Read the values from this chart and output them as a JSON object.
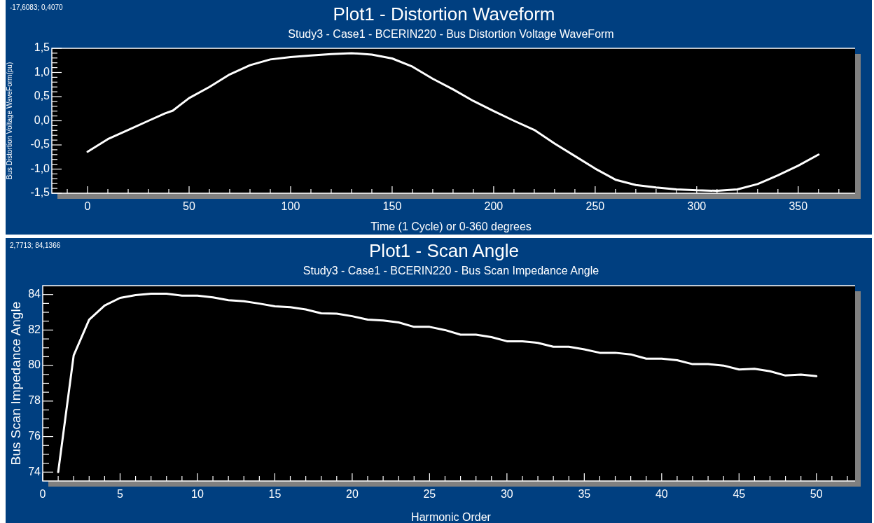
{
  "chart_data": [
    {
      "type": "line",
      "title": "Plot1 - Distortion Waveform",
      "subtitle": "Study3 - Case1 - BCERIN220 - Bus Distortion Voltage WaveForm",
      "xlabel": "Time (1 Cycle) or 0-360 degrees",
      "ylabel": "Bus Distortion Voltage WaveForm(pu)",
      "annotations": [
        "-17,6083; 0,4070"
      ],
      "xlim": [
        -17.6,
        378
      ],
      "ylim": [
        -1.5,
        1.5
      ],
      "xticks": [
        {
          "value": -10,
          "label": null
        },
        0,
        {
          "value": 10,
          "label": null
        },
        {
          "value": 20,
          "label": null
        },
        {
          "value": 30,
          "label": null
        },
        {
          "value": 40,
          "label": null
        },
        50,
        {
          "value": 60,
          "label": null
        },
        {
          "value": 70,
          "label": null
        },
        {
          "value": 80,
          "label": null
        },
        {
          "value": 90,
          "label": null
        },
        100,
        {
          "value": 110,
          "label": null
        },
        {
          "value": 120,
          "label": null
        },
        {
          "value": 130,
          "label": null
        },
        {
          "value": 140,
          "label": null
        },
        150,
        {
          "value": 160,
          "label": null
        },
        {
          "value": 170,
          "label": null
        },
        {
          "value": 180,
          "label": null
        },
        {
          "value": 190,
          "label": null
        },
        200,
        {
          "value": 210,
          "label": null
        },
        {
          "value": 220,
          "label": null
        },
        {
          "value": 230,
          "label": null
        },
        {
          "value": 240,
          "label": null
        },
        250,
        {
          "value": 260,
          "label": null
        },
        {
          "value": 270,
          "label": null
        },
        {
          "value": 280,
          "label": null
        },
        {
          "value": 290,
          "label": null
        },
        300,
        {
          "value": 310,
          "label": null
        },
        {
          "value": 320,
          "label": null
        },
        {
          "value": 330,
          "label": null
        },
        {
          "value": 340,
          "label": null
        },
        350,
        {
          "value": 360,
          "label": null
        },
        {
          "value": 370,
          "label": null
        }
      ],
      "yticks": [
        {
          "value": -1.5,
          "label": "-1,5"
        },
        {
          "value": -1.4,
          "label": null
        },
        {
          "value": -1.3,
          "label": null
        },
        {
          "value": -1.2,
          "label": null
        },
        {
          "value": -1.1,
          "label": null
        },
        {
          "value": -1.0,
          "label": "-1,0"
        },
        {
          "value": -0.9,
          "label": null
        },
        {
          "value": -0.8,
          "label": null
        },
        {
          "value": -0.7,
          "label": null
        },
        {
          "value": -0.6,
          "label": null
        },
        {
          "value": -0.5,
          "label": "-0,5"
        },
        {
          "value": -0.4,
          "label": null
        },
        {
          "value": -0.3,
          "label": null
        },
        {
          "value": -0.2,
          "label": null
        },
        {
          "value": -0.1,
          "label": null
        },
        {
          "value": 0,
          "label": "0,0"
        },
        {
          "value": 0.1,
          "label": null
        },
        {
          "value": 0.2,
          "label": null
        },
        {
          "value": 0.3,
          "label": null
        },
        {
          "value": 0.4,
          "label": null
        },
        {
          "value": 0.5,
          "label": "0,5"
        },
        {
          "value": 0.6,
          "label": null
        },
        {
          "value": 0.7,
          "label": null
        },
        {
          "value": 0.8,
          "label": null
        },
        {
          "value": 0.9,
          "label": null
        },
        {
          "value": 1.0,
          "label": "1,0"
        },
        {
          "value": 1.1,
          "label": null
        },
        {
          "value": 1.2,
          "label": null
        },
        {
          "value": 1.3,
          "label": null
        },
        {
          "value": 1.4,
          "label": null
        },
        {
          "value": 1.5,
          "label": "1,5"
        }
      ],
      "x": [
        0,
        10,
        20,
        30,
        38,
        42,
        50,
        60,
        70,
        80,
        90,
        100,
        110,
        120,
        130,
        140,
        150,
        160,
        170,
        180,
        190,
        200,
        210,
        220,
        230,
        240,
        250,
        260,
        270,
        280,
        290,
        300,
        310,
        320,
        330,
        340,
        350,
        360
      ],
      "series": [
        {
          "color": "#ffffff",
          "values": [
            -0.64,
            -0.38,
            -0.19,
            0.0,
            0.15,
            0.21,
            0.47,
            0.7,
            0.96,
            1.15,
            1.27,
            1.32,
            1.35,
            1.38,
            1.4,
            1.37,
            1.29,
            1.12,
            0.87,
            0.65,
            0.41,
            0.2,
            0.0,
            -0.19,
            -0.47,
            -0.73,
            -0.99,
            -1.22,
            -1.33,
            -1.38,
            -1.42,
            -1.44,
            -1.45,
            -1.42,
            -1.31,
            -1.13,
            -0.93,
            -0.7
          ]
        }
      ]
    },
    {
      "type": "line",
      "title": "Plot1 - Scan Angle",
      "subtitle": "Study3 - Case1 - BCERIN220 - Bus Scan Impedance Angle",
      "xlabel": "Harmonic Order",
      "ylabel": "Bus Scan Impedance Angle",
      "annotations": [
        "2,7713; 84,1366"
      ],
      "xlim": [
        0,
        52.5
      ],
      "ylim": [
        73.5,
        84.5
      ],
      "xticks": [
        0,
        {
          "value": 1,
          "label": null
        },
        {
          "value": 2,
          "label": null
        },
        {
          "value": 3,
          "label": null
        },
        {
          "value": 4,
          "label": null
        },
        5,
        {
          "value": 6,
          "label": null
        },
        {
          "value": 7,
          "label": null
        },
        {
          "value": 8,
          "label": null
        },
        {
          "value": 9,
          "label": null
        },
        10,
        {
          "value": 11,
          "label": null
        },
        {
          "value": 12,
          "label": null
        },
        {
          "value": 13,
          "label": null
        },
        {
          "value": 14,
          "label": null
        },
        15,
        {
          "value": 16,
          "label": null
        },
        {
          "value": 17,
          "label": null
        },
        {
          "value": 18,
          "label": null
        },
        {
          "value": 19,
          "label": null
        },
        20,
        {
          "value": 21,
          "label": null
        },
        {
          "value": 22,
          "label": null
        },
        {
          "value": 23,
          "label": null
        },
        {
          "value": 24,
          "label": null
        },
        25,
        {
          "value": 26,
          "label": null
        },
        {
          "value": 27,
          "label": null
        },
        {
          "value": 28,
          "label": null
        },
        {
          "value": 29,
          "label": null
        },
        30,
        {
          "value": 31,
          "label": null
        },
        {
          "value": 32,
          "label": null
        },
        {
          "value": 33,
          "label": null
        },
        {
          "value": 34,
          "label": null
        },
        35,
        {
          "value": 36,
          "label": null
        },
        {
          "value": 37,
          "label": null
        },
        {
          "value": 38,
          "label": null
        },
        {
          "value": 39,
          "label": null
        },
        40,
        {
          "value": 41,
          "label": null
        },
        {
          "value": 42,
          "label": null
        },
        {
          "value": 43,
          "label": null
        },
        {
          "value": 44,
          "label": null
        },
        45,
        {
          "value": 46,
          "label": null
        },
        {
          "value": 47,
          "label": null
        },
        {
          "value": 48,
          "label": null
        },
        {
          "value": 49,
          "label": null
        },
        50,
        {
          "value": 51,
          "label": null
        },
        {
          "value": 52,
          "label": null
        }
      ],
      "yticks": [
        74,
        {
          "value": 74.5,
          "label": null
        },
        {
          "value": 75,
          "label": null
        },
        {
          "value": 75.5,
          "label": null
        },
        76,
        {
          "value": 76.5,
          "label": null
        },
        {
          "value": 77,
          "label": null
        },
        {
          "value": 77.5,
          "label": null
        },
        78,
        {
          "value": 78.5,
          "label": null
        },
        {
          "value": 79,
          "label": null
        },
        {
          "value": 79.5,
          "label": null
        },
        80,
        {
          "value": 80.5,
          "label": null
        },
        {
          "value": 81,
          "label": null
        },
        {
          "value": 81.5,
          "label": null
        },
        82,
        {
          "value": 82.5,
          "label": null
        },
        {
          "value": 83,
          "label": null
        },
        {
          "value": 83.5,
          "label": null
        },
        84
      ],
      "x": [
        1,
        2,
        3,
        4,
        5,
        6,
        7,
        8,
        9,
        10,
        11,
        12,
        13,
        14,
        15,
        16,
        17,
        18,
        19,
        20,
        21,
        22,
        23,
        24,
        25,
        26,
        27,
        28,
        29,
        30,
        31,
        32,
        33,
        34,
        35,
        36,
        37,
        38,
        39,
        40,
        41,
        42,
        43,
        44,
        45,
        46,
        47,
        48,
        49,
        50
      ],
      "series": [
        {
          "color": "#ffffff",
          "values": [
            74.0,
            80.57,
            82.58,
            83.38,
            83.81,
            83.97,
            84.05,
            84.05,
            83.94,
            83.94,
            83.84,
            83.68,
            83.62,
            83.49,
            83.34,
            83.29,
            83.16,
            82.94,
            82.92,
            82.78,
            82.59,
            82.54,
            82.43,
            82.18,
            82.18,
            82.0,
            81.74,
            81.74,
            81.6,
            81.37,
            81.37,
            81.28,
            81.06,
            81.06,
            80.91,
            80.72,
            80.72,
            80.63,
            80.39,
            80.39,
            80.3,
            80.08,
            80.08,
            80.0,
            79.78,
            79.82,
            79.68,
            79.44,
            79.49,
            79.4
          ]
        }
      ]
    }
  ]
}
